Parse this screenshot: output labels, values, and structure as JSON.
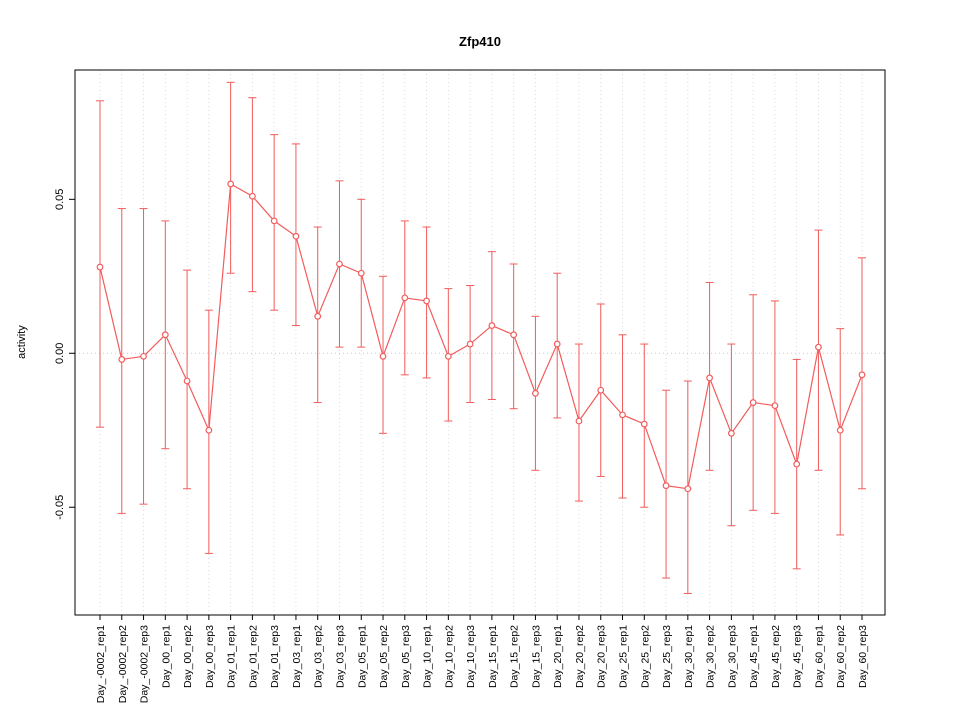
{
  "chart_data": {
    "type": "line",
    "title": "Zfp410",
    "xlabel": "",
    "ylabel": "activity",
    "categories": [
      "Day_-0002_rep1",
      "Day_-0002_rep2",
      "Day_-0002_rep3",
      "Day_00_rep1",
      "Day_00_rep2",
      "Day_00_rep3",
      "Day_01_rep1",
      "Day_01_rep2",
      "Day_01_rep3",
      "Day_03_rep1",
      "Day_03_rep2",
      "Day_03_rep3",
      "Day_05_rep1",
      "Day_05_rep2",
      "Day_05_rep3",
      "Day_10_rep1",
      "Day_10_rep2",
      "Day_10_rep3",
      "Day_15_rep1",
      "Day_15_rep2",
      "Day_15_rep3",
      "Day_20_rep1",
      "Day_20_rep2",
      "Day_20_rep3",
      "Day_25_rep1",
      "Day_25_rep2",
      "Day_25_rep3",
      "Day_30_rep1",
      "Day_30_rep2",
      "Day_30_rep3",
      "Day_45_rep1",
      "Day_45_rep2",
      "Day_45_rep3",
      "Day_60_rep1",
      "Day_60_rep2",
      "Day_60_rep3"
    ],
    "series": [
      {
        "name": "activity",
        "values": [
          0.028,
          -0.002,
          -0.001,
          0.006,
          -0.009,
          -0.025,
          0.055,
          0.051,
          0.043,
          0.038,
          0.012,
          0.029,
          0.026,
          -0.001,
          0.018,
          0.017,
          -0.001,
          0.003,
          0.009,
          0.006,
          -0.013,
          0.003,
          -0.022,
          -0.012,
          -0.02,
          -0.023,
          -0.043,
          -0.044,
          -0.008,
          -0.026,
          -0.016,
          -0.017,
          -0.036,
          0.002,
          -0.025,
          -0.007
        ],
        "upper": [
          0.082,
          0.047,
          0.047,
          0.043,
          0.027,
          0.014,
          0.088,
          0.083,
          0.071,
          0.068,
          0.041,
          0.056,
          0.05,
          0.025,
          0.043,
          0.041,
          0.021,
          0.022,
          0.033,
          0.029,
          0.012,
          0.026,
          0.003,
          0.016,
          0.006,
          0.003,
          -0.012,
          -0.009,
          0.023,
          0.003,
          0.019,
          0.017,
          -0.002,
          0.04,
          0.008,
          0.031
        ],
        "lower": [
          -0.024,
          -0.052,
          -0.049,
          -0.031,
          -0.044,
          -0.065,
          0.026,
          0.02,
          0.014,
          0.009,
          -0.016,
          0.002,
          0.002,
          -0.026,
          -0.007,
          -0.008,
          -0.022,
          -0.016,
          -0.015,
          -0.018,
          -0.038,
          -0.021,
          -0.048,
          -0.04,
          -0.047,
          -0.05,
          -0.073,
          -0.078,
          -0.038,
          -0.056,
          -0.051,
          -0.052,
          -0.07,
          -0.038,
          -0.059,
          -0.044
        ]
      }
    ],
    "yticks": [
      -0.05,
      0,
      0.05
    ],
    "ytick_labels": [
      "-0.05",
      "0.00",
      "0.05"
    ],
    "ylim": [
      -0.085,
      0.092
    ],
    "grid": true,
    "zero_line": true,
    "legend": "none",
    "colors": {
      "series": "#f25c5c",
      "grid": "#d9d9d9",
      "zero": "#cccccc",
      "box": "#000000",
      "text": "#000000",
      "background": "#ffffff",
      "point_fill": "#ffffff"
    }
  }
}
